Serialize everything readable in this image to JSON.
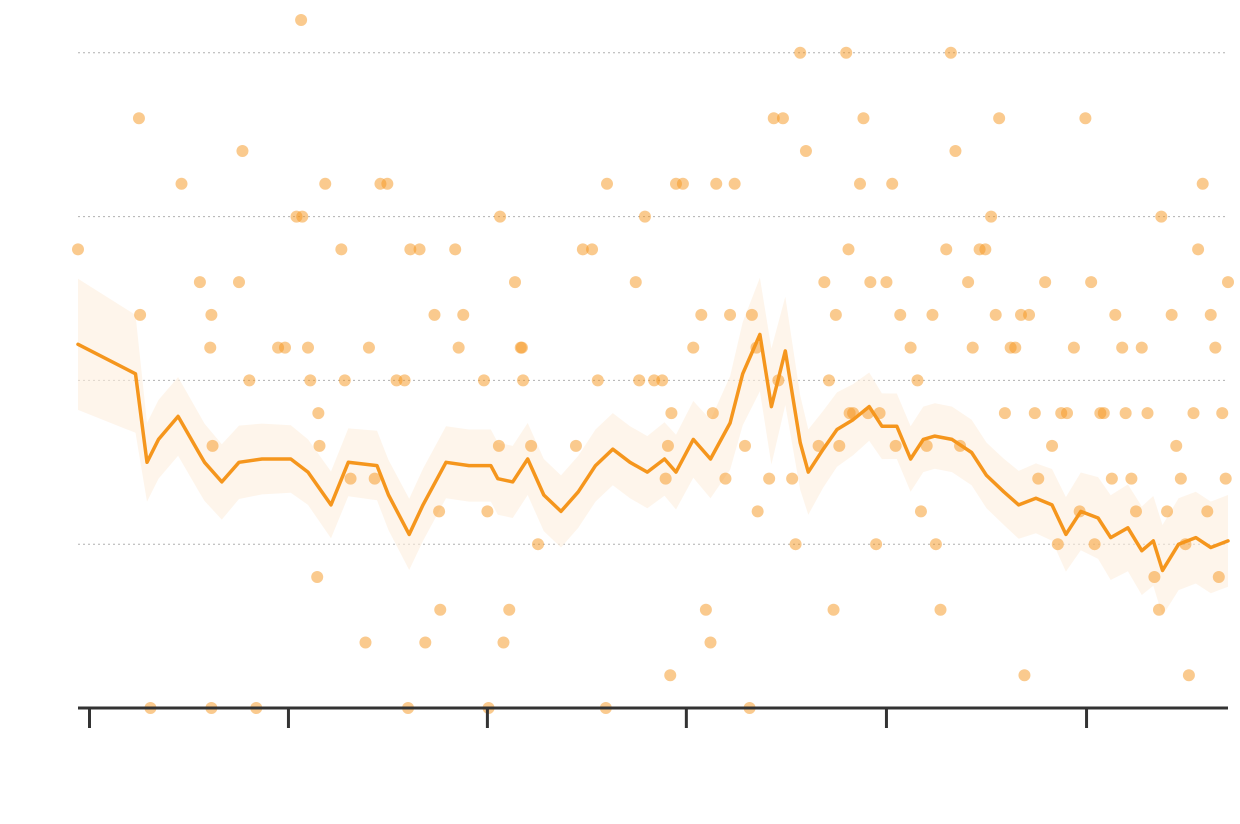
{
  "colors": {
    "accent": "#f5961d",
    "band": "#fdeedd",
    "axis": "#333333",
    "grid": "#b0b0b0"
  },
  "chart_data": {
    "type": "scatter",
    "title": "",
    "xlabel": "",
    "ylabel": "",
    "xlim": [
      0,
      100
    ],
    "ylim": [
      0,
      21
    ],
    "grid": {
      "y": true,
      "x": false,
      "y_gridlines": [
        5,
        10,
        15,
        20
      ]
    },
    "x_ticks": [
      1,
      18.3,
      35.6,
      52.9,
      70.3,
      87.7
    ],
    "x_tick_labels": [],
    "y_tick_labels": [],
    "points": [
      [
        0,
        14
      ],
      [
        5.3,
        18
      ],
      [
        5.4,
        12
      ],
      [
        6.3,
        0
      ],
      [
        9,
        16
      ],
      [
        10.6,
        13
      ],
      [
        11.5,
        11
      ],
      [
        11.6,
        12
      ],
      [
        11.7,
        8
      ],
      [
        11.6,
        0
      ],
      [
        14,
        13
      ],
      [
        14.3,
        17
      ],
      [
        14.9,
        10
      ],
      [
        15.5,
        0
      ],
      [
        17.4,
        11
      ],
      [
        18,
        11
      ],
      [
        19,
        15
      ],
      [
        19.5,
        15
      ],
      [
        19.4,
        21
      ],
      [
        20,
        11
      ],
      [
        20.2,
        10
      ],
      [
        20.8,
        4
      ],
      [
        20.9,
        9
      ],
      [
        21,
        8
      ],
      [
        21.5,
        16
      ],
      [
        22.9,
        14
      ],
      [
        23.2,
        10
      ],
      [
        23.7,
        7
      ],
      [
        25,
        2
      ],
      [
        25.3,
        11
      ],
      [
        25.8,
        7
      ],
      [
        26.3,
        16
      ],
      [
        26.9,
        16
      ],
      [
        27.7,
        10
      ],
      [
        28.4,
        10
      ],
      [
        28.7,
        0
      ],
      [
        28.9,
        14
      ],
      [
        29.7,
        14
      ],
      [
        30.2,
        2
      ],
      [
        31,
        12
      ],
      [
        31.5,
        3
      ],
      [
        31.4,
        6
      ],
      [
        32.8,
        14
      ],
      [
        33.1,
        11
      ],
      [
        33.5,
        12
      ],
      [
        35.3,
        10
      ],
      [
        35.6,
        6
      ],
      [
        35.7,
        0
      ],
      [
        36.6,
        8
      ],
      [
        36.7,
        15
      ],
      [
        37,
        2
      ],
      [
        37.5,
        3
      ],
      [
        38,
        13
      ],
      [
        38.5,
        11
      ],
      [
        38.7,
        10
      ],
      [
        38.6,
        11
      ],
      [
        39.4,
        8
      ],
      [
        40,
        5
      ],
      [
        43.3,
        8
      ],
      [
        43.9,
        14
      ],
      [
        44.7,
        14
      ],
      [
        45.2,
        10
      ],
      [
        45.9,
        0
      ],
      [
        46,
        16
      ],
      [
        48.5,
        13
      ],
      [
        48.8,
        10
      ],
      [
        49.3,
        15
      ],
      [
        50.1,
        10
      ],
      [
        50.8,
        10
      ],
      [
        51.3,
        8
      ],
      [
        51.1,
        7
      ],
      [
        51.6,
        9
      ],
      [
        51.5,
        1
      ],
      [
        52,
        16
      ],
      [
        52.6,
        16
      ],
      [
        53.5,
        11
      ],
      [
        54.2,
        12
      ],
      [
        54.6,
        3
      ],
      [
        55,
        2
      ],
      [
        55.2,
        9
      ],
      [
        55.5,
        16
      ],
      [
        56.3,
        7
      ],
      [
        56.7,
        12
      ],
      [
        57.1,
        16
      ],
      [
        58,
        8
      ],
      [
        58.4,
        0
      ],
      [
        58.6,
        12
      ],
      [
        59.1,
        6
      ],
      [
        59,
        11
      ],
      [
        60.1,
        7
      ],
      [
        60.5,
        18
      ],
      [
        60.9,
        10
      ],
      [
        61.3,
        18
      ],
      [
        62.1,
        7
      ],
      [
        62.4,
        5
      ],
      [
        62.8,
        20
      ],
      [
        63.3,
        17
      ],
      [
        64.4,
        8
      ],
      [
        64.9,
        13
      ],
      [
        65.3,
        10
      ],
      [
        65.7,
        3
      ],
      [
        65.9,
        12
      ],
      [
        66.2,
        8
      ],
      [
        66.8,
        20
      ],
      [
        67.1,
        9
      ],
      [
        67,
        14
      ],
      [
        67.4,
        9
      ],
      [
        68,
        16
      ],
      [
        68.3,
        18
      ],
      [
        68.7,
        9
      ],
      [
        68.9,
        13
      ],
      [
        69.4,
        5
      ],
      [
        69.7,
        9
      ],
      [
        70.3,
        13
      ],
      [
        70.8,
        16
      ],
      [
        71.1,
        8
      ],
      [
        71.5,
        12
      ],
      [
        72.4,
        11
      ],
      [
        73,
        10
      ],
      [
        73.3,
        6
      ],
      [
        73.8,
        8
      ],
      [
        74.3,
        12
      ],
      [
        74.6,
        5
      ],
      [
        75,
        3
      ],
      [
        75.5,
        14
      ],
      [
        75.9,
        20
      ],
      [
        76.3,
        17
      ],
      [
        76.7,
        8
      ],
      [
        77.4,
        13
      ],
      [
        77.8,
        11
      ],
      [
        78.4,
        14
      ],
      [
        78.9,
        14
      ],
      [
        79.4,
        15
      ],
      [
        79.8,
        12
      ],
      [
        80.1,
        18
      ],
      [
        80.6,
        9
      ],
      [
        81.1,
        11
      ],
      [
        81.5,
        11
      ],
      [
        82,
        12
      ],
      [
        82.3,
        1
      ],
      [
        82.7,
        12
      ],
      [
        83.2,
        9
      ],
      [
        83.5,
        7
      ],
      [
        84.1,
        13
      ],
      [
        84.7,
        8
      ],
      [
        85.2,
        5
      ],
      [
        85.5,
        9
      ],
      [
        86,
        9
      ],
      [
        86.6,
        11
      ],
      [
        87.1,
        6
      ],
      [
        87.6,
        18
      ],
      [
        88.1,
        13
      ],
      [
        88.4,
        5
      ],
      [
        88.9,
        9
      ],
      [
        89.2,
        9
      ],
      [
        89.9,
        7
      ],
      [
        90.2,
        12
      ],
      [
        90.8,
        11
      ],
      [
        91.1,
        9
      ],
      [
        91.6,
        7
      ],
      [
        92,
        6
      ],
      [
        92.5,
        11
      ],
      [
        93,
        9
      ],
      [
        93.6,
        4
      ],
      [
        94,
        3
      ],
      [
        94.2,
        15
      ],
      [
        94.7,
        6
      ],
      [
        95.1,
        12
      ],
      [
        95.5,
        8
      ],
      [
        95.9,
        7
      ],
      [
        96.3,
        5
      ],
      [
        96.6,
        1
      ],
      [
        97,
        9
      ],
      [
        97.4,
        14
      ],
      [
        97.8,
        16
      ],
      [
        98.2,
        6
      ],
      [
        98.5,
        12
      ],
      [
        98.9,
        11
      ],
      [
        99.2,
        4
      ],
      [
        99.5,
        9
      ],
      [
        99.8,
        7
      ],
      [
        100,
        13
      ]
    ],
    "trend": [
      [
        0,
        11.1
      ],
      [
        5,
        10.2
      ],
      [
        6,
        7.5
      ],
      [
        7,
        8.2
      ],
      [
        8.7,
        8.9
      ],
      [
        10.5,
        7.8
      ],
      [
        11,
        7.5
      ],
      [
        12.5,
        6.9
      ],
      [
        14,
        7.5
      ],
      [
        16,
        7.6
      ],
      [
        18.5,
        7.6
      ],
      [
        20,
        7.2
      ],
      [
        22,
        6.2
      ],
      [
        23.5,
        7.5
      ],
      [
        26,
        7.4
      ],
      [
        27,
        6.5
      ],
      [
        28.8,
        5.3
      ],
      [
        30,
        6.2
      ],
      [
        32,
        7.5
      ],
      [
        34,
        7.4
      ],
      [
        35.9,
        7.4
      ],
      [
        36.5,
        7.0
      ],
      [
        37.8,
        6.9
      ],
      [
        39.1,
        7.6
      ],
      [
        40.5,
        6.5
      ],
      [
        42,
        6.0
      ],
      [
        43.5,
        6.6
      ],
      [
        45,
        7.4
      ],
      [
        46.5,
        7.9
      ],
      [
        48,
        7.5
      ],
      [
        49.5,
        7.2
      ],
      [
        51,
        7.6
      ],
      [
        52,
        7.2
      ],
      [
        53.5,
        8.2
      ],
      [
        55,
        7.6
      ],
      [
        56.7,
        8.7
      ],
      [
        57.8,
        10.2
      ],
      [
        59.3,
        11.4
      ],
      [
        60.3,
        9.2
      ],
      [
        61.5,
        10.9
      ],
      [
        62.8,
        8.1
      ],
      [
        63.5,
        7.2
      ],
      [
        64.8,
        7.9
      ],
      [
        66,
        8.5
      ],
      [
        67.4,
        8.8
      ],
      [
        68.8,
        9.2
      ],
      [
        69.9,
        8.6
      ],
      [
        71.2,
        8.6
      ],
      [
        72.4,
        7.6
      ],
      [
        73.5,
        8.2
      ],
      [
        74.5,
        8.3
      ],
      [
        76,
        8.2
      ],
      [
        77.7,
        7.8
      ],
      [
        79,
        7.1
      ],
      [
        80.5,
        6.6
      ],
      [
        81.8,
        6.2
      ],
      [
        83.3,
        6.4
      ],
      [
        84.7,
        6.2
      ],
      [
        85.9,
        5.3
      ],
      [
        87.2,
        6.0
      ],
      [
        88.7,
        5.8
      ],
      [
        89.8,
        5.2
      ],
      [
        91.3,
        5.5
      ],
      [
        92.5,
        4.8
      ],
      [
        93.5,
        5.1
      ],
      [
        94.3,
        4.2
      ],
      [
        95.7,
        5.0
      ],
      [
        97.2,
        5.2
      ],
      [
        98.5,
        4.9
      ],
      [
        100,
        5.1
      ]
    ],
    "band_halfwidth": [
      [
        0,
        2.0
      ],
      [
        5,
        1.8
      ],
      [
        6,
        1.2
      ],
      [
        10,
        1.2
      ],
      [
        20,
        1.0
      ],
      [
        30,
        1.1
      ],
      [
        40,
        1.1
      ],
      [
        50,
        1.1
      ],
      [
        55,
        1.2
      ],
      [
        58,
        1.6
      ],
      [
        60,
        1.8
      ],
      [
        62,
        1.6
      ],
      [
        64,
        1.2
      ],
      [
        70,
        1.0
      ],
      [
        80,
        1.0
      ],
      [
        85,
        1.1
      ],
      [
        90,
        1.3
      ],
      [
        95,
        1.4
      ],
      [
        100,
        1.4
      ]
    ]
  }
}
